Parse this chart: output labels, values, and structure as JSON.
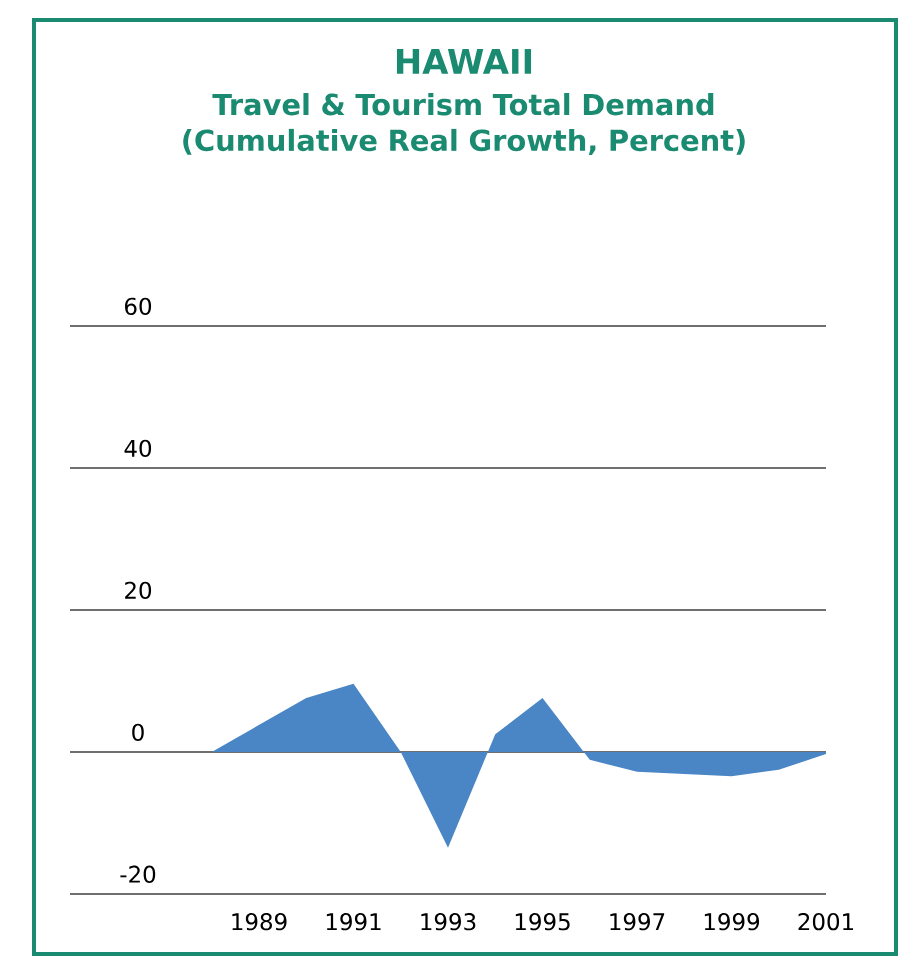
{
  "chart_data": {
    "type": "area",
    "title": "HAWAII",
    "subtitle": "Travel & Tourism Total Demand (Cumulative Real Growth, Percent)",
    "x": [
      1988,
      1990,
      1991,
      1992,
      1993,
      1994,
      1995,
      1996,
      1997,
      1998,
      1999,
      2000,
      2001
    ],
    "values": [
      0,
      7.6,
      9.6,
      0,
      -13.5,
      2.5,
      7.6,
      -1.1,
      -2.8,
      -3.1,
      -3.4,
      -2.5,
      -0.3
    ],
    "color": "#4a86c5",
    "xlim": [
      1985,
      2001
    ],
    "xticks": [
      1989,
      1991,
      1993,
      1995,
      1997,
      1999,
      2001
    ],
    "ylim": [
      -20,
      60
    ],
    "yticks": [
      -20,
      0,
      20,
      40,
      60
    ],
    "grid": "y"
  }
}
